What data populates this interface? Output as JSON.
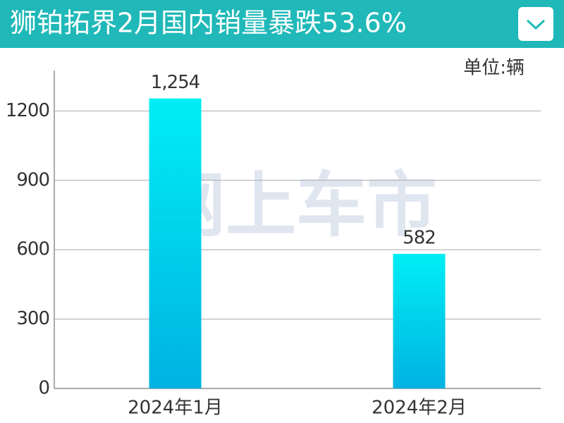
{
  "chart_data": {
    "type": "bar",
    "title": "狮铂拓界2月国内销量暴跌53.6%",
    "unit_label": "单位:辆",
    "watermark": "网上车市",
    "categories": [
      "2024年1月",
      "2024年2月"
    ],
    "values": [
      1254,
      582
    ],
    "value_labels": [
      "1,254",
      "582"
    ],
    "color": "#00c8ea",
    "ylim": [
      0,
      1375
    ],
    "yticks": [
      0,
      300,
      600,
      900,
      1200
    ],
    "grid": true
  }
}
